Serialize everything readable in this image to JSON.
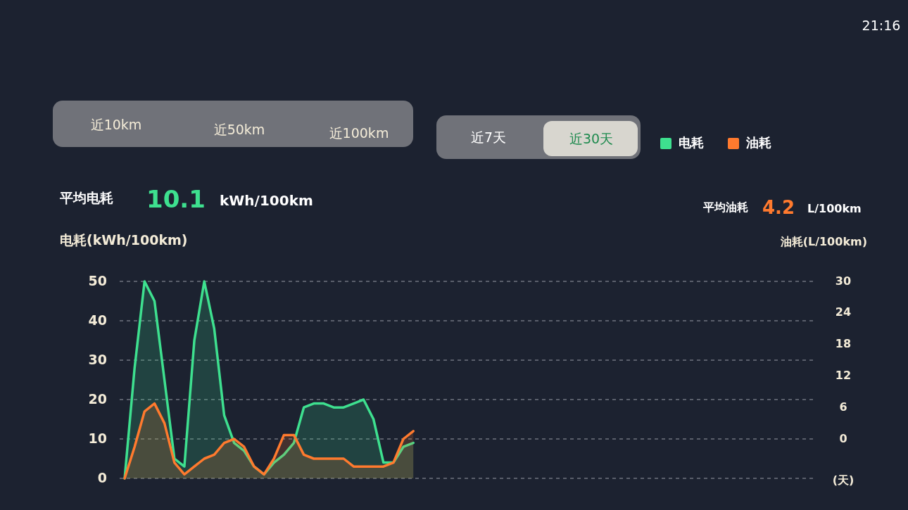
{
  "chart_data": {
    "type": "area",
    "categories": [
      null,
      null,
      null,
      null,
      null,
      null,
      null,
      null,
      null,
      null,
      null,
      null,
      null,
      null,
      null,
      null,
      null,
      null,
      null,
      null,
      null,
      null,
      null,
      null,
      null,
      null,
      null,
      null,
      null,
      null,
      null,
      null,
      null,
      null,
      null,
      null,
      null,
      null,
      null,
      null,
      null,
      null,
      null,
      null,
      null,
      null,
      null,
      null,
      null,
      null,
      null,
      null,
      null,
      null,
      null,
      null,
      null,
      null,
      null,
      null,
      null,
      null,
      null,
      null,
      null,
      null,
      null,
      null,
      null,
      null
    ],
    "series": [
      {
        "name": "电耗",
        "color": "#3ee08f",
        "values": [
          0,
          28,
          50,
          45,
          25,
          5,
          3,
          35,
          50,
          38,
          16,
          9,
          7,
          3,
          1,
          4,
          6,
          9,
          18,
          19,
          19,
          18,
          18,
          19,
          20,
          15,
          4,
          4,
          8,
          9,
          null,
          null,
          null,
          null,
          null,
          null,
          null,
          null,
          null,
          null,
          null,
          null,
          null,
          null,
          null,
          null,
          null,
          null,
          null,
          null,
          null,
          null,
          null,
          null,
          null,
          null,
          null,
          null,
          null,
          null,
          null,
          null,
          null,
          null,
          null,
          null,
          null,
          null,
          null,
          null
        ]
      },
      {
        "name": "油耗",
        "color": "#ff7a2e",
        "values": [
          0,
          8,
          17,
          19,
          14,
          4,
          1,
          3,
          5,
          6,
          9,
          10,
          8,
          3,
          1,
          5,
          11,
          11,
          6,
          5,
          5,
          5,
          5,
          3,
          3,
          3,
          3,
          4,
          10,
          12,
          null,
          null,
          null,
          null,
          null,
          null,
          null,
          null,
          null,
          null,
          null,
          null,
          null,
          null,
          null,
          null,
          null,
          null,
          null,
          null,
          null,
          null,
          null,
          null,
          null,
          null,
          null,
          null,
          null,
          null,
          null,
          null,
          null,
          null,
          null,
          null,
          null,
          null,
          null,
          null
        ]
      }
    ],
    "ylabel": "电耗(kWh/100km)",
    "y2label": "油耗(L/100km)",
    "ylim": [
      0,
      50
    ],
    "yticks": [
      0,
      10,
      20,
      30,
      40,
      50
    ],
    "y2lim": [
      -7.5,
      30
    ],
    "y2ticks": [
      0,
      6,
      12,
      18,
      24,
      30
    ],
    "grid": "y",
    "legend": "top right",
    "annotations": [
      "近10km",
      "近50km",
      "近100km",
      "近7天",
      "近30天",
      "平均电耗",
      "10.1",
      "kWh/100km",
      "平均油耗",
      "4.2",
      "L/100km",
      "(天)",
      "21:16"
    ]
  }
}
